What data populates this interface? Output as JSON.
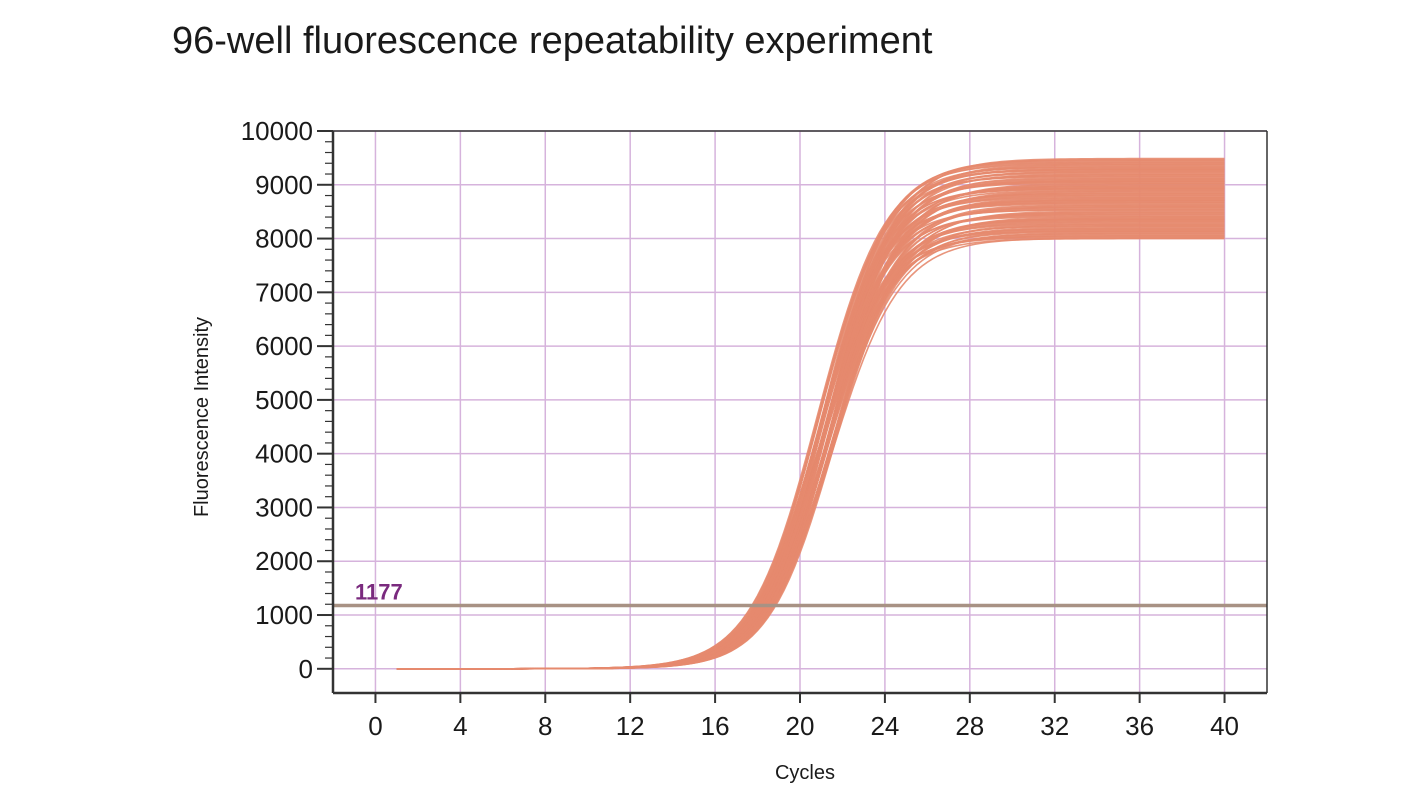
{
  "title": "96-well fluorescence repeatability experiment",
  "colors": {
    "curve": "#e6896e",
    "grid": "#d6b3dc",
    "threshold_line": "#a89284",
    "threshold_label": "#7a2a7e",
    "axis": "#333333"
  },
  "chart_data": {
    "type": "line",
    "title": "96-well fluorescence repeatability experiment",
    "xlabel": "Cycles",
    "ylabel": "Fluorescence Intensity",
    "xlim": [
      -2,
      42
    ],
    "ylim": [
      -450,
      10000
    ],
    "x_ticks": [
      0,
      4,
      8,
      12,
      16,
      20,
      24,
      28,
      32,
      36,
      40
    ],
    "y_ticks": [
      0,
      1000,
      2000,
      3000,
      4000,
      5000,
      6000,
      7000,
      8000,
      9000,
      10000
    ],
    "grid": true,
    "threshold": {
      "value": 1177,
      "label": "1177"
    },
    "series_summary": {
      "count": 96,
      "x_start": 1,
      "x_end": 40,
      "baseline": 0,
      "plateau_min": 8000,
      "plateau_max": 9500,
      "midpoint_cycle_min": 20.8,
      "midpoint_cycle_max": 21.6
    }
  }
}
